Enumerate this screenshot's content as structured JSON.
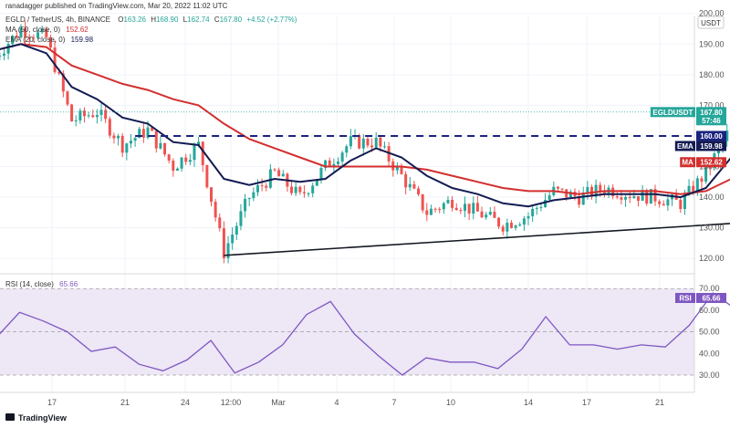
{
  "header": {
    "publisher": "ranadagger published on TradingView.com, Mar 20, 2022 11:02 UTC",
    "symbol_line": "EGLD / TetherUS, 4h, BINANCE",
    "ohlc": {
      "o_label": "O",
      "o": "163.26",
      "h_label": "H",
      "h": "168.90",
      "l_label": "L",
      "l": "162.74",
      "c_label": "C",
      "c": "167.80",
      "change": "+4.52 (+2.77%)"
    },
    "ma_line": {
      "label": "MA (50, close, 0)",
      "value": "152.62"
    },
    "ema_line": {
      "label": "EMA (20, close, 0)",
      "value": "159.98"
    },
    "currency_badge": "USDT",
    "rsi_line": {
      "label": "RSI (14, close)",
      "value": "65.66"
    }
  },
  "footer": {
    "brand": "TradingView"
  },
  "colors": {
    "up": "#26a69a",
    "down": "#ef5350",
    "ema": "#131b52",
    "ma": "#d32f2f",
    "rsi": "#7e57c2",
    "resistance": "#1a237e",
    "support": "#131722",
    "rsi_band": "#ede7f6"
  },
  "chart_data": [
    {
      "type": "candlestick",
      "y_axis_ticks": [
        "200.00",
        "190.00",
        "180.00",
        "170.00",
        "160.00",
        "150.00",
        "140.00",
        "130.00",
        "120.00"
      ],
      "ylim": [
        115,
        202
      ],
      "x_tick_labels": [
        "17",
        "21",
        "24",
        "12:00",
        "Mar",
        "4",
        "7",
        "10",
        "14",
        "17",
        "21"
      ],
      "price_tags": [
        {
          "label": "EGLDUSDT",
          "value": "167.80",
          "sub": "57:46",
          "color": "#26a69a"
        },
        {
          "label": "",
          "value": "160.00",
          "color": "#1a237e"
        },
        {
          "label": "EMA",
          "value": "159.98",
          "color": "#131b52"
        },
        {
          "label": "MA",
          "value": "152.62",
          "color": "#d32f2f"
        }
      ],
      "resistance_level": 160,
      "support_trendline": {
        "from": {
          "date": "Feb 24",
          "price": 121
        },
        "to": {
          "date": "Mar 19",
          "price": 133
        }
      },
      "price_path": [
        {
          "date": "Feb 15",
          "close": 186
        },
        {
          "date": "Feb 16",
          "close": 195
        },
        {
          "date": "Feb 17",
          "close": 192
        },
        {
          "date": "Feb 18",
          "close": 165
        },
        {
          "date": "Feb 19",
          "close": 168
        },
        {
          "date": "Feb 20",
          "close": 157
        },
        {
          "date": "Feb 21",
          "close": 162
        },
        {
          "date": "Feb 22",
          "close": 150
        },
        {
          "date": "Feb 23",
          "close": 157
        },
        {
          "date": "Feb 24",
          "close": 122
        },
        {
          "date": "Feb 25",
          "close": 140
        },
        {
          "date": "Feb 26",
          "close": 148
        },
        {
          "date": "Feb 27",
          "close": 140
        },
        {
          "date": "Feb 28",
          "close": 150
        },
        {
          "date": "Mar 1",
          "close": 158
        },
        {
          "date": "Mar 2",
          "close": 158
        },
        {
          "date": "Mar 3",
          "close": 147
        },
        {
          "date": "Mar 4",
          "close": 135
        },
        {
          "date": "Mar 5",
          "close": 139
        },
        {
          "date": "Mar 6",
          "close": 135
        },
        {
          "date": "Mar 7",
          "close": 131
        },
        {
          "date": "Mar 8",
          "close": 134
        },
        {
          "date": "Mar 9",
          "close": 142
        },
        {
          "date": "Mar 10",
          "close": 140
        },
        {
          "date": "Mar 11",
          "close": 143
        },
        {
          "date": "Mar 12",
          "close": 141
        },
        {
          "date": "Mar 13",
          "close": 140
        },
        {
          "date": "Mar 14",
          "close": 138
        },
        {
          "date": "Mar 15",
          "close": 148
        },
        {
          "date": "Mar 16",
          "close": 163
        },
        {
          "date": "Mar 17",
          "close": 160
        },
        {
          "date": "Mar 18",
          "close": 159
        },
        {
          "date": "Mar 19",
          "close": 162
        },
        {
          "date": "Mar 20",
          "close": 167.8
        }
      ],
      "ema_path": [
        188,
        190,
        187,
        176,
        172,
        166,
        164,
        158,
        157,
        146,
        144,
        146,
        145,
        146,
        152,
        156,
        153,
        147,
        143,
        141,
        138,
        137,
        139,
        140,
        141,
        141,
        141,
        140,
        143,
        153,
        157,
        158,
        160,
        159.98
      ],
      "ma_path": [
        188,
        190,
        189,
        183,
        180,
        177,
        175,
        172,
        170,
        164,
        159,
        156,
        153,
        150,
        150,
        150,
        150,
        149,
        147,
        145,
        143,
        142,
        142,
        141,
        142,
        142,
        142,
        141,
        142,
        146,
        150,
        152,
        152,
        152.62
      ]
    },
    {
      "type": "line",
      "name": "RSI (14, close)",
      "y_axis_ticks": [
        "70.00",
        "60.00",
        "50.00",
        "40.00",
        "30.00"
      ],
      "ylim": [
        22,
        76
      ],
      "levels": [
        70,
        50,
        30
      ],
      "values": [
        47,
        59,
        55,
        50,
        41,
        43,
        35,
        32,
        37,
        46,
        31,
        36,
        44,
        58,
        64,
        49,
        39,
        30,
        38,
        36,
        36,
        33,
        42,
        57,
        44,
        44,
        42,
        44,
        43,
        53,
        68,
        60,
        57,
        56,
        55,
        65.66
      ],
      "current": "65.66"
    }
  ]
}
